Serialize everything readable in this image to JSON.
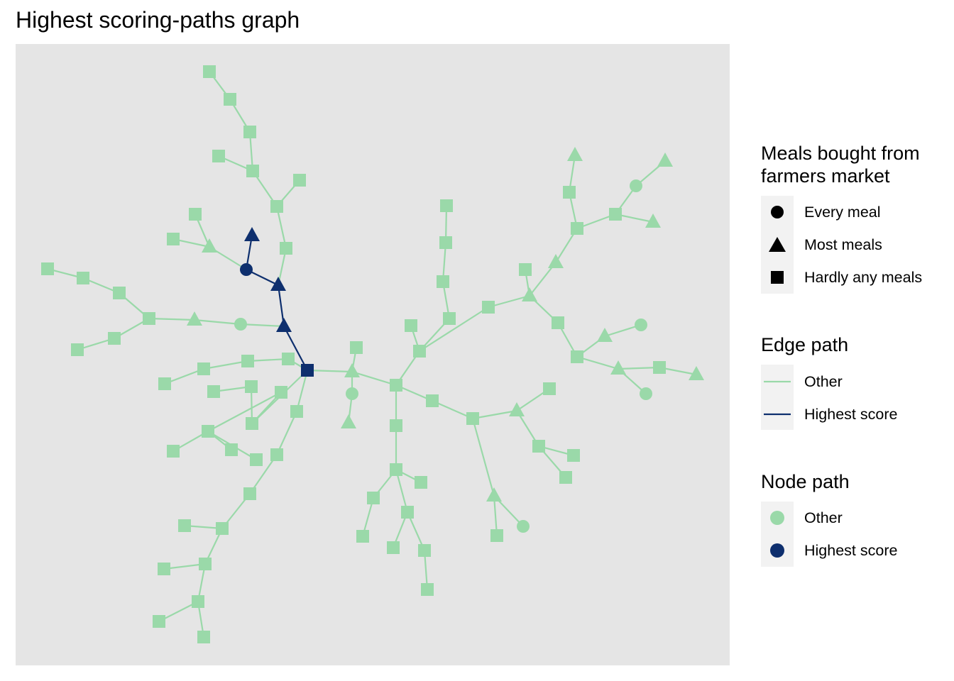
{
  "title": "Highest scoring-paths graph",
  "colors": {
    "panel_bg": "#e5e5e5",
    "other": "#9ad9a9",
    "highest": "#0e2f6e",
    "key_bg": "#f2f2f2"
  },
  "legend": {
    "shape": {
      "title": "Meals bought from farmers market",
      "title_lines": [
        "Meals bought from",
        "farmers market"
      ],
      "items": [
        {
          "label": "Every meal",
          "shape": "circle"
        },
        {
          "label": "Most meals",
          "shape": "triangle"
        },
        {
          "label": "Hardly any meals",
          "shape": "square"
        }
      ]
    },
    "edge": {
      "title": "Edge path",
      "items": [
        {
          "label": "Other",
          "color": "#9ad9a9"
        },
        {
          "label": "Highest score",
          "color": "#0e2f6e"
        }
      ]
    },
    "node": {
      "title": "Node path",
      "items": [
        {
          "label": "Other",
          "color": "#9ad9a9"
        },
        {
          "label": "Highest score",
          "color": "#0e2f6e"
        }
      ]
    }
  },
  "graph": {
    "nodes": [
      {
        "id": "hub",
        "shape": "square",
        "path": "highest"
      },
      {
        "id": "h1",
        "shape": "triangle",
        "path": "highest"
      },
      {
        "id": "h2",
        "shape": "triangle",
        "path": "highest"
      },
      {
        "id": "h3",
        "shape": "circle",
        "path": "highest"
      },
      {
        "id": "h4",
        "shape": "triangle",
        "path": "highest"
      },
      {
        "id": "u1",
        "shape": "square",
        "path": "other"
      },
      {
        "id": "u2",
        "shape": "square",
        "path": "other"
      },
      {
        "id": "u3",
        "shape": "square",
        "path": "other"
      },
      {
        "id": "u4",
        "shape": "square",
        "path": "other"
      },
      {
        "id": "u5",
        "shape": "square",
        "path": "other"
      },
      {
        "id": "u6",
        "shape": "square",
        "path": "other"
      },
      {
        "id": "u7",
        "shape": "square",
        "path": "other"
      },
      {
        "id": "u8",
        "shape": "square",
        "path": "other"
      },
      {
        "id": "u9",
        "shape": "triangle",
        "path": "other"
      },
      {
        "id": "u10",
        "shape": "square",
        "path": "other"
      },
      {
        "id": "u11",
        "shape": "square",
        "path": "other"
      },
      {
        "id": "w1",
        "shape": "circle",
        "path": "other"
      },
      {
        "id": "w2",
        "shape": "triangle",
        "path": "other"
      },
      {
        "id": "w3",
        "shape": "square",
        "path": "other"
      },
      {
        "id": "w4",
        "shape": "square",
        "path": "other"
      },
      {
        "id": "w5",
        "shape": "square",
        "path": "other"
      },
      {
        "id": "w6",
        "shape": "square",
        "path": "other"
      },
      {
        "id": "w7",
        "shape": "square",
        "path": "other"
      },
      {
        "id": "w8",
        "shape": "square",
        "path": "other"
      },
      {
        "id": "l1",
        "shape": "square",
        "path": "other"
      },
      {
        "id": "l2",
        "shape": "square",
        "path": "other"
      },
      {
        "id": "l3",
        "shape": "square",
        "path": "other"
      },
      {
        "id": "l4",
        "shape": "square",
        "path": "other"
      },
      {
        "id": "l5",
        "shape": "square",
        "path": "other"
      },
      {
        "id": "m1",
        "shape": "square",
        "path": "other"
      },
      {
        "id": "m2",
        "shape": "square",
        "path": "other"
      },
      {
        "id": "m3",
        "shape": "square",
        "path": "other"
      },
      {
        "id": "m4",
        "shape": "square",
        "path": "other"
      },
      {
        "id": "m5",
        "shape": "square",
        "path": "other"
      },
      {
        "id": "m6",
        "shape": "square",
        "path": "other"
      },
      {
        "id": "m7",
        "shape": "square",
        "path": "other"
      },
      {
        "id": "s1",
        "shape": "square",
        "path": "other"
      },
      {
        "id": "s2",
        "shape": "square",
        "path": "other"
      },
      {
        "id": "s3",
        "shape": "square",
        "path": "other"
      },
      {
        "id": "s4",
        "shape": "square",
        "path": "other"
      },
      {
        "id": "s5",
        "shape": "square",
        "path": "other"
      },
      {
        "id": "s6",
        "shape": "square",
        "path": "other"
      },
      {
        "id": "s7",
        "shape": "square",
        "path": "other"
      },
      {
        "id": "s8",
        "shape": "square",
        "path": "other"
      },
      {
        "id": "s9",
        "shape": "square",
        "path": "other"
      },
      {
        "id": "s10",
        "shape": "square",
        "path": "other"
      },
      {
        "id": "s11",
        "shape": "square",
        "path": "other"
      },
      {
        "id": "s12",
        "shape": "square",
        "path": "other"
      },
      {
        "id": "s13",
        "shape": "square",
        "path": "other"
      },
      {
        "id": "c1",
        "shape": "triangle",
        "path": "other"
      },
      {
        "id": "c2",
        "shape": "square",
        "path": "other"
      },
      {
        "id": "c3",
        "shape": "circle",
        "path": "other"
      },
      {
        "id": "c4",
        "shape": "triangle",
        "path": "other"
      },
      {
        "id": "c5",
        "shape": "square",
        "path": "other"
      },
      {
        "id": "d1",
        "shape": "square",
        "path": "other"
      },
      {
        "id": "d2",
        "shape": "square",
        "path": "other"
      },
      {
        "id": "d3",
        "shape": "square",
        "path": "other"
      },
      {
        "id": "d4",
        "shape": "square",
        "path": "other"
      },
      {
        "id": "d5",
        "shape": "square",
        "path": "other"
      },
      {
        "id": "d6",
        "shape": "square",
        "path": "other"
      },
      {
        "id": "d7",
        "shape": "square",
        "path": "other"
      },
      {
        "id": "d8",
        "shape": "square",
        "path": "other"
      },
      {
        "id": "d9",
        "shape": "square",
        "path": "other"
      },
      {
        "id": "d10",
        "shape": "square",
        "path": "other"
      },
      {
        "id": "d11",
        "shape": "square",
        "path": "other"
      },
      {
        "id": "n1",
        "shape": "square",
        "path": "other"
      },
      {
        "id": "n2",
        "shape": "square",
        "path": "other"
      },
      {
        "id": "n3",
        "shape": "square",
        "path": "other"
      },
      {
        "id": "n4",
        "shape": "square",
        "path": "other"
      },
      {
        "id": "n5",
        "shape": "square",
        "path": "other"
      },
      {
        "id": "n6",
        "shape": "square",
        "path": "other"
      },
      {
        "id": "n7",
        "shape": "square",
        "path": "other"
      },
      {
        "id": "n8",
        "shape": "square",
        "path": "other"
      },
      {
        "id": "n9",
        "shape": "triangle",
        "path": "other"
      },
      {
        "id": "n10",
        "shape": "square",
        "path": "other"
      },
      {
        "id": "n11",
        "shape": "square",
        "path": "other"
      },
      {
        "id": "n12",
        "shape": "square",
        "path": "other"
      },
      {
        "id": "n13",
        "shape": "square",
        "path": "other"
      },
      {
        "id": "n14",
        "shape": "triangle",
        "path": "other"
      },
      {
        "id": "n15",
        "shape": "square",
        "path": "other"
      },
      {
        "id": "n16",
        "shape": "circle",
        "path": "other"
      },
      {
        "id": "e1",
        "shape": "square",
        "path": "other"
      },
      {
        "id": "e2",
        "shape": "triangle",
        "path": "other"
      },
      {
        "id": "e3",
        "shape": "square",
        "path": "other"
      },
      {
        "id": "e4",
        "shape": "square",
        "path": "other"
      },
      {
        "id": "e5",
        "shape": "square",
        "path": "other"
      },
      {
        "id": "e6",
        "shape": "square",
        "path": "other"
      },
      {
        "id": "e7",
        "shape": "square",
        "path": "other"
      },
      {
        "id": "e8",
        "shape": "square",
        "path": "other"
      },
      {
        "id": "e9",
        "shape": "triangle",
        "path": "other"
      },
      {
        "id": "e10",
        "shape": "circle",
        "path": "other"
      },
      {
        "id": "e11",
        "shape": "triangle",
        "path": "other"
      },
      {
        "id": "e12",
        "shape": "square",
        "path": "other"
      },
      {
        "id": "e13",
        "shape": "triangle",
        "path": "other"
      },
      {
        "id": "e14",
        "shape": "circle",
        "path": "other"
      },
      {
        "id": "e15",
        "shape": "triangle",
        "path": "other"
      },
      {
        "id": "e16",
        "shape": "square",
        "path": "other"
      },
      {
        "id": "e17",
        "shape": "square",
        "path": "other"
      },
      {
        "id": "e18",
        "shape": "triangle",
        "path": "other"
      },
      {
        "id": "e19",
        "shape": "circle",
        "path": "other"
      },
      {
        "id": "e20",
        "shape": "triangle",
        "path": "other"
      },
      {
        "id": "e21",
        "shape": "square",
        "path": "other"
      },
      {
        "id": "e22",
        "shape": "triangle",
        "path": "other"
      },
      {
        "id": "e23",
        "shape": "square",
        "path": "other"
      },
      {
        "id": "e24",
        "shape": "triangle",
        "path": "other"
      },
      {
        "id": "e25",
        "shape": "circle",
        "path": "other"
      }
    ],
    "edges": [
      [
        "hub",
        "h1",
        "highest"
      ],
      [
        "h1",
        "h2",
        "highest"
      ],
      [
        "h2",
        "h3",
        "highest"
      ],
      [
        "h3",
        "h4",
        "highest"
      ],
      [
        "h2",
        "u1",
        "other"
      ],
      [
        "u1",
        "u2",
        "other"
      ],
      [
        "u2",
        "u3",
        "other"
      ],
      [
        "u2",
        "u5",
        "other"
      ],
      [
        "u3",
        "u4",
        "other"
      ],
      [
        "u3",
        "u6",
        "other"
      ],
      [
        "u6",
        "u7",
        "other"
      ],
      [
        "u7",
        "u8",
        "other"
      ],
      [
        "h3",
        "u9",
        "other"
      ],
      [
        "u9",
        "u10",
        "other"
      ],
      [
        "u9",
        "u11",
        "other"
      ],
      [
        "h1",
        "w1",
        "other"
      ],
      [
        "w1",
        "w2",
        "other"
      ],
      [
        "w2",
        "w3",
        "other"
      ],
      [
        "w3",
        "w4",
        "other"
      ],
      [
        "w4",
        "w5",
        "other"
      ],
      [
        "w5",
        "w6",
        "other"
      ],
      [
        "w6",
        "w7",
        "other"
      ],
      [
        "w3",
        "w8",
        "other"
      ],
      [
        "hub",
        "l1",
        "other"
      ],
      [
        "l1",
        "l2",
        "other"
      ],
      [
        "l2",
        "l3",
        "other"
      ],
      [
        "hub",
        "m1",
        "other"
      ],
      [
        "m1",
        "m2",
        "other"
      ],
      [
        "m1",
        "m3",
        "other"
      ],
      [
        "m3",
        "m4",
        "other"
      ],
      [
        "m4",
        "m5",
        "other"
      ],
      [
        "m3",
        "m6",
        "other"
      ],
      [
        "m3",
        "m7",
        "other"
      ],
      [
        "hub",
        "s1",
        "other"
      ],
      [
        "s1",
        "s2",
        "other"
      ],
      [
        "s2",
        "s3",
        "other"
      ],
      [
        "s3",
        "s4",
        "other"
      ],
      [
        "s4",
        "s5",
        "other"
      ],
      [
        "s4",
        "s6",
        "other"
      ],
      [
        "s6",
        "s7",
        "other"
      ],
      [
        "s6",
        "s8",
        "other"
      ],
      [
        "s8",
        "s9",
        "other"
      ],
      [
        "s8",
        "s10",
        "other"
      ],
      [
        "s10",
        "s11",
        "other"
      ],
      [
        "s10",
        "s12",
        "other"
      ],
      [
        "m1",
        "s13",
        "other"
      ],
      [
        "hub",
        "c1",
        "other"
      ],
      [
        "c1",
        "c2",
        "other"
      ],
      [
        "c1",
        "c3",
        "other"
      ],
      [
        "c3",
        "c4",
        "other"
      ],
      [
        "c1",
        "c5",
        "other"
      ],
      [
        "c5",
        "d1",
        "other"
      ],
      [
        "d1",
        "d2",
        "other"
      ],
      [
        "d2",
        "d3",
        "other"
      ],
      [
        "d3",
        "d4",
        "other"
      ],
      [
        "d2",
        "d5",
        "other"
      ],
      [
        "d5",
        "d6",
        "other"
      ],
      [
        "d5",
        "d7",
        "other"
      ],
      [
        "d5",
        "d8",
        "other"
      ],
      [
        "d8",
        "d9",
        "other"
      ],
      [
        "d9",
        "d10",
        "other"
      ],
      [
        "d8",
        "d11",
        "other"
      ],
      [
        "c5",
        "n1",
        "other"
      ],
      [
        "n1",
        "n2",
        "other"
      ],
      [
        "n2",
        "n3",
        "other"
      ],
      [
        "n3",
        "n4",
        "other"
      ],
      [
        "n4",
        "n5",
        "other"
      ],
      [
        "n5",
        "n6",
        "other"
      ],
      [
        "n5",
        "n7",
        "other"
      ],
      [
        "n7",
        "n8",
        "other"
      ],
      [
        "n8",
        "n9",
        "other"
      ],
      [
        "n9",
        "n10",
        "other"
      ],
      [
        "n10",
        "n11",
        "other"
      ],
      [
        "n11",
        "n12",
        "other"
      ],
      [
        "n11",
        "n13",
        "other"
      ],
      [
        "n8",
        "n14",
        "other"
      ],
      [
        "n14",
        "n15",
        "other"
      ],
      [
        "n14",
        "n16",
        "other"
      ],
      [
        "n2",
        "e1",
        "other"
      ],
      [
        "e1",
        "e2",
        "other"
      ],
      [
        "e2",
        "e3",
        "other"
      ],
      [
        "e3",
        "e4",
        "other"
      ],
      [
        "e4",
        "e5",
        "other"
      ],
      [
        "e4",
        "e6",
        "other"
      ],
      [
        "e2",
        "e7",
        "other"
      ],
      [
        "e2",
        "e8",
        "other"
      ],
      [
        "e8",
        "e9",
        "other"
      ],
      [
        "e9",
        "e10",
        "other"
      ],
      [
        "e10",
        "e11",
        "other"
      ],
      [
        "e11",
        "e12",
        "other"
      ],
      [
        "e11",
        "e13",
        "other"
      ],
      [
        "e13",
        "e14",
        "other"
      ],
      [
        "e14",
        "e15",
        "other"
      ],
      [
        "e13",
        "e16",
        "other"
      ],
      [
        "e13",
        "e17",
        "other"
      ],
      [
        "e17",
        "e18",
        "other"
      ],
      [
        "e18",
        "e19",
        "other"
      ],
      [
        "e19",
        "e20",
        "other"
      ],
      [
        "e19",
        "e21",
        "other"
      ],
      [
        "e21",
        "e22",
        "other"
      ],
      [
        "e22",
        "e23",
        "other"
      ],
      [
        "e22",
        "e24",
        "other"
      ],
      [
        "e24",
        "e25",
        "other"
      ]
    ]
  }
}
